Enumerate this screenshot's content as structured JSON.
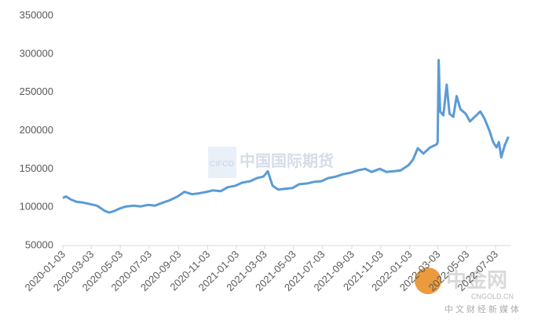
{
  "chart_data": {
    "type": "line",
    "x": [
      "2020-01-03",
      "2020-01-10",
      "2020-01-20",
      "2020-02-01",
      "2020-02-15",
      "2020-03-01",
      "2020-03-15",
      "2020-04-01",
      "2020-04-10",
      "2020-04-20",
      "2020-05-01",
      "2020-05-15",
      "2020-06-01",
      "2020-06-15",
      "2020-07-01",
      "2020-07-15",
      "2020-08-01",
      "2020-08-15",
      "2020-09-01",
      "2020-09-15",
      "2020-10-01",
      "2020-10-15",
      "2020-11-01",
      "2020-11-15",
      "2020-12-01",
      "2020-12-15",
      "2021-01-01",
      "2021-01-15",
      "2021-02-01",
      "2021-02-15",
      "2021-03-01",
      "2021-03-10",
      "2021-03-20",
      "2021-04-01",
      "2021-04-15",
      "2021-05-01",
      "2021-05-15",
      "2021-06-01",
      "2021-06-15",
      "2021-07-01",
      "2021-07-15",
      "2021-08-01",
      "2021-08-15",
      "2021-09-01",
      "2021-09-15",
      "2021-10-01",
      "2021-10-15",
      "2021-11-01",
      "2021-11-15",
      "2021-12-01",
      "2021-12-15",
      "2022-01-01",
      "2022-01-10",
      "2022-01-20",
      "2022-02-01",
      "2022-02-15",
      "2022-03-01",
      "2022-03-03",
      "2022-03-05",
      "2022-03-08",
      "2022-03-15",
      "2022-03-22",
      "2022-03-28",
      "2022-04-05",
      "2022-04-12",
      "2022-04-20",
      "2022-05-01",
      "2022-05-10",
      "2022-05-20",
      "2022-06-01",
      "2022-06-10",
      "2022-06-20",
      "2022-06-28",
      "2022-07-05",
      "2022-07-10",
      "2022-07-15",
      "2022-07-22",
      "2022-07-30"
    ],
    "series": [
      {
        "color": "#5b9bd5",
        "values": [
          112000,
          114000,
          110000,
          107000,
          106000,
          104000,
          102000,
          95000,
          93000,
          95000,
          98000,
          101000,
          102000,
          101000,
          103000,
          102000,
          106000,
          109000,
          114000,
          120000,
          117000,
          118000,
          120000,
          122000,
          121000,
          126000,
          128000,
          132000,
          134000,
          138000,
          140000,
          147000,
          128000,
          123000,
          124000,
          125000,
          130000,
          131000,
          133000,
          134000,
          138000,
          140000,
          143000,
          145000,
          148000,
          150000,
          146000,
          150000,
          146000,
          147000,
          148000,
          155000,
          162000,
          177000,
          170000,
          178000,
          182000,
          185000,
          292000,
          225000,
          220000,
          260000,
          222000,
          218000,
          245000,
          228000,
          222000,
          212000,
          218000,
          225000,
          215000,
          200000,
          185000,
          178000,
          185000,
          165000,
          180000,
          192000
        ]
      }
    ],
    "ylim": [
      50000,
      350000
    ],
    "yticks": [
      50000,
      100000,
      150000,
      200000,
      250000,
      300000,
      350000
    ],
    "xlim": [
      "2020-01-03",
      "2022-08-05"
    ],
    "xticks": [
      "2020-01-03",
      "2020-03-03",
      "2020-05-03",
      "2020-07-03",
      "2020-09-03",
      "2020-11-03",
      "2021-01-03",
      "2021-03-03",
      "2021-05-03",
      "2021-07-03",
      "2021-09-03",
      "2021-11-03",
      "2022-01-03",
      "2022-03-03",
      "2022-05-03",
      "2022-07-03"
    ],
    "watermarks": [
      "CIFCO",
      "中国国际期货",
      "中金网",
      "CNGOLD.CN",
      "中文财经新媒体"
    ]
  }
}
